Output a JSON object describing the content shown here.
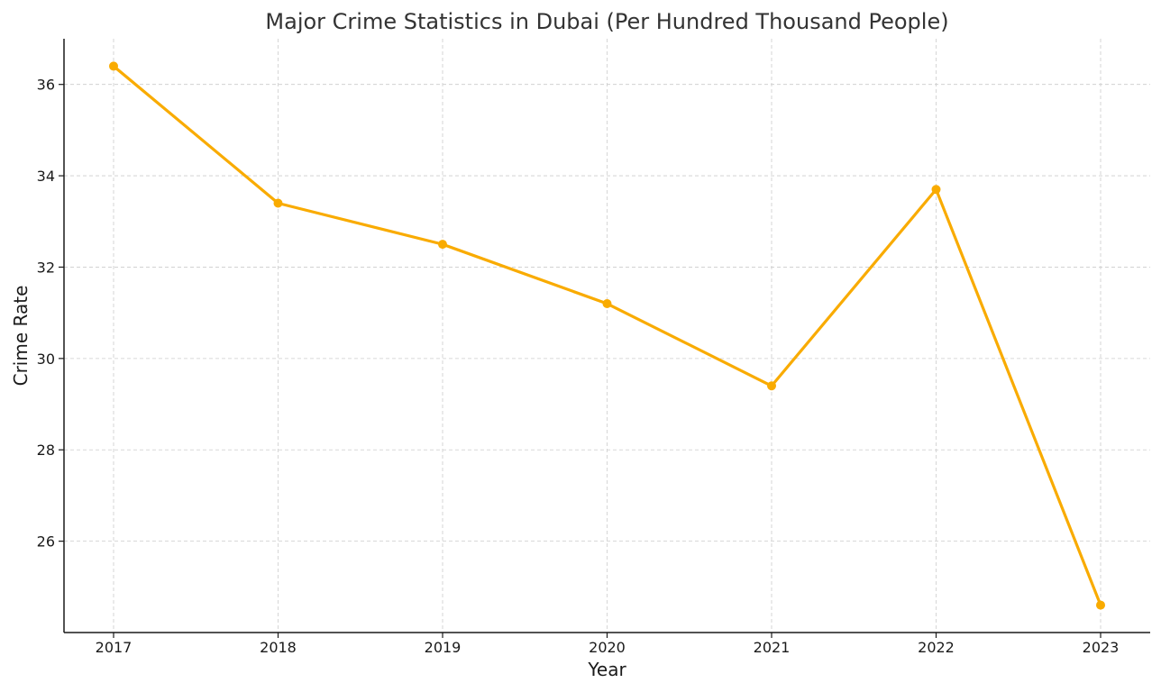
{
  "chart_data": {
    "type": "line",
    "title": "Major Crime Statistics in Dubai (Per Hundred Thousand People)",
    "xlabel": "Year",
    "ylabel": "Crime Rate",
    "categories": [
      "2017",
      "2018",
      "2019",
      "2020",
      "2021",
      "2022",
      "2023"
    ],
    "series": [
      {
        "values": [
          36.4,
          33.4,
          32.5,
          31.2,
          29.4,
          33.7,
          24.6
        ],
        "color": "#f9ab00",
        "marker": "circle"
      }
    ],
    "ylim": [
      24.0,
      37.0
    ],
    "yticks": [
      26,
      28,
      30,
      32,
      34,
      36
    ],
    "grid": true,
    "legend": "none"
  }
}
